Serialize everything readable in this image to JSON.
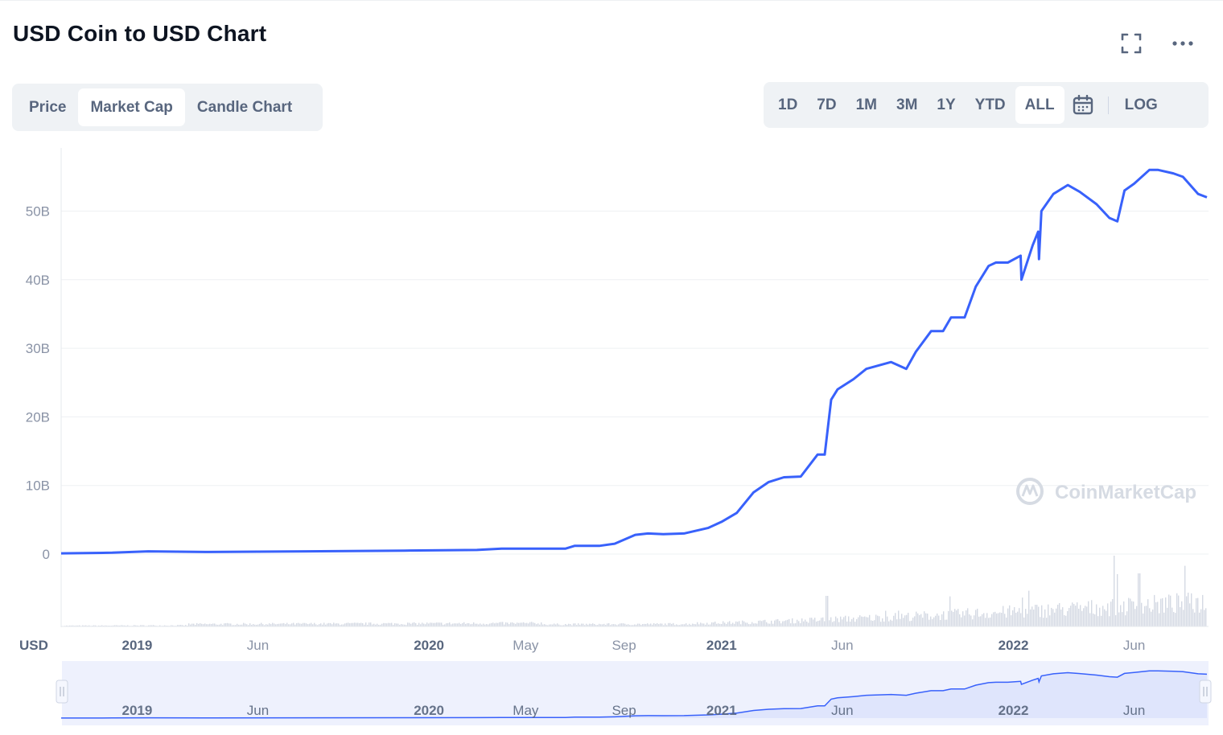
{
  "header": {
    "title": "USD Coin to USD Chart",
    "fullscreen_icon": "expand-icon",
    "more_icon": "more-horizontal-icon"
  },
  "view_tabs": [
    {
      "label": "Price",
      "active": false
    },
    {
      "label": "Market Cap",
      "active": true
    },
    {
      "label": "Candle Chart",
      "active": false
    }
  ],
  "range_tabs": [
    {
      "label": "1D",
      "active": false
    },
    {
      "label": "7D",
      "active": false
    },
    {
      "label": "1M",
      "active": false
    },
    {
      "label": "3M",
      "active": false
    },
    {
      "label": "1Y",
      "active": false
    },
    {
      "label": "YTD",
      "active": false
    },
    {
      "label": "ALL",
      "active": true
    }
  ],
  "calendar_icon": "calendar-icon",
  "log_label": "LOG",
  "watermark": "CoinMarketCap",
  "colors": {
    "line": "#3861fb",
    "volume": "#cfd6e4",
    "navigator_fill": "#e9edfd",
    "muted_text": "#58667e"
  },
  "chart_data": {
    "type": "line",
    "series": [
      {
        "x": [
          "2018-09-28",
          "2018-12-01",
          "2019-01-15",
          "2019-04-01",
          "2019-08-01",
          "2019-12-01",
          "2020-03-01",
          "2020-04-01",
          "2020-06-20",
          "2020-07-01",
          "2020-08-01",
          "2020-08-20",
          "2020-09-15",
          "2020-10-01",
          "2020-10-20",
          "2020-11-15",
          "2020-12-15",
          "2021-01-01",
          "2021-01-20",
          "2021-02-10",
          "2021-03-01",
          "2021-03-20",
          "2021-04-10",
          "2021-05-01",
          "2021-05-10",
          "2021-05-18",
          "2021-05-26",
          "2021-06-15",
          "2021-07-01",
          "2021-08-01",
          "2021-08-20",
          "2021-09-01",
          "2021-09-20",
          "2021-10-05",
          "2021-10-15",
          "2021-11-01",
          "2021-11-15",
          "2021-12-01",
          "2021-12-10",
          "2021-12-25",
          "2022-01-10",
          "2022-01-11",
          "2022-01-25",
          "2022-02-01",
          "2022-02-02",
          "2022-02-05",
          "2022-02-20",
          "2022-03-10",
          "2022-03-25",
          "2022-04-15",
          "2022-05-01",
          "2022-05-11",
          "2022-05-20",
          "2022-06-01",
          "2022-06-20",
          "2022-07-01",
          "2022-07-20",
          "2022-08-01",
          "2022-08-20",
          "2022-08-31"
        ],
        "values": [
          0.1,
          0.2,
          0.4,
          0.3,
          0.4,
          0.5,
          0.6,
          0.8,
          0.8,
          1.2,
          1.2,
          1.5,
          2.8,
          3.0,
          2.9,
          3.0,
          3.8,
          4.7,
          6.0,
          9.0,
          10.5,
          11.2,
          11.3,
          14.5,
          14.5,
          22.5,
          24.0,
          25.5,
          27.0,
          28.0,
          27.0,
          29.5,
          32.5,
          32.5,
          34.5,
          34.5,
          39.0,
          42.0,
          42.5,
          42.5,
          43.5,
          40.0,
          45.0,
          47.0,
          43.0,
          50.0,
          52.5,
          53.8,
          52.8,
          51.0,
          49.0,
          48.5,
          53.0,
          54.0,
          56.0,
          56.0,
          55.5,
          55.0,
          52.5,
          52.0
        ]
      }
    ],
    "y_ticks": [
      "0",
      "10B",
      "20B",
      "30B",
      "40B",
      "50B"
    ],
    "ylim": [
      0,
      60
    ],
    "y_unit": "USD",
    "x_ticks": [
      {
        "label": "2019",
        "bold": true,
        "date": "2019-01-01"
      },
      {
        "label": "Jun",
        "bold": false,
        "date": "2019-06-01"
      },
      {
        "label": "2020",
        "bold": true,
        "date": "2020-01-01"
      },
      {
        "label": "May",
        "bold": false,
        "date": "2020-05-01"
      },
      {
        "label": "Sep",
        "bold": false,
        "date": "2020-09-01"
      },
      {
        "label": "2021",
        "bold": true,
        "date": "2021-01-01"
      },
      {
        "label": "Jun",
        "bold": false,
        "date": "2021-06-01"
      },
      {
        "label": "2022",
        "bold": true,
        "date": "2022-01-01"
      },
      {
        "label": "Jun",
        "bold": false,
        "date": "2022-06-01"
      }
    ],
    "x_range": [
      "2018-09-28",
      "2022-08-31"
    ],
    "volume": "shown as light gray bars under the price line",
    "grid": "horizontal gridlines"
  }
}
